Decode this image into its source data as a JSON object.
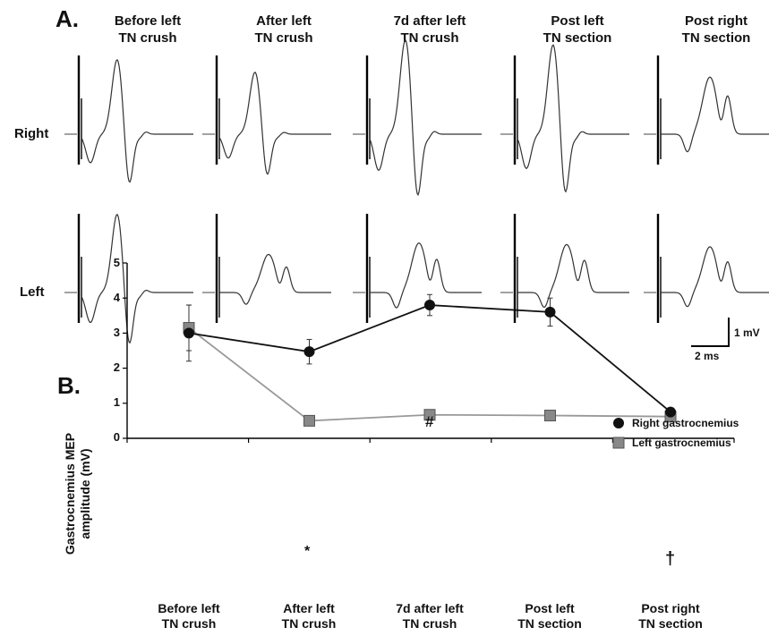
{
  "panel_a": {
    "label": "A.",
    "columns": [
      {
        "title": "Before left\nTN crush"
      },
      {
        "title": "After left\nTN crush"
      },
      {
        "title": "7d after left\nTN crush"
      },
      {
        "title": "Post left\nTN section"
      },
      {
        "title": "Post right\nTN section"
      }
    ],
    "rows": [
      {
        "label": "Right"
      },
      {
        "label": "Left"
      }
    ],
    "scale_bar": {
      "vertical": "1 mV",
      "horizontal": "2 ms"
    },
    "trace_amplitudes_mV": {
      "right": [
        3.0,
        2.5,
        3.8,
        3.6,
        0.75
      ],
      "left": [
        3.15,
        0.5,
        0.65,
        0.63,
        0.6
      ]
    }
  },
  "panel_b": {
    "label": "B."
  },
  "chart_data": {
    "type": "line",
    "categories": [
      "Before left\nTN crush",
      "After left\nTN crush",
      "7d after left\nTN crush",
      "Post left\nTN section",
      "Post right\nTN section"
    ],
    "ylabel": "Gastrocnemius MEP\namplitude (mV)",
    "xlabel": "",
    "ylim": [
      0,
      5
    ],
    "yticks": [
      "0",
      "1",
      "2",
      "3",
      "4",
      "5"
    ],
    "grid": false,
    "legend_position": "top-right",
    "series": [
      {
        "name": "Right gastrocnemius",
        "values": [
          3.0,
          2.47,
          3.8,
          3.6,
          0.75
        ],
        "errors": [
          0.8,
          0.35,
          0.3,
          0.4,
          0.05
        ],
        "color": "#111111",
        "marker": "circle"
      },
      {
        "name": "Left gastrocnemius",
        "values": [
          3.15,
          0.5,
          0.67,
          0.65,
          0.62
        ],
        "errors": [
          0.65,
          0.05,
          0.05,
          0.05,
          0.05
        ],
        "color": "#888888",
        "marker": "square"
      }
    ],
    "annotations": [
      {
        "text": "*",
        "category_index": 1,
        "series": "Left gastrocnemius"
      },
      {
        "text": "#",
        "category_index": 2,
        "series": "Right gastrocnemius"
      },
      {
        "text": "†",
        "category_index": 4,
        "series": "Right gastrocnemius"
      }
    ]
  }
}
